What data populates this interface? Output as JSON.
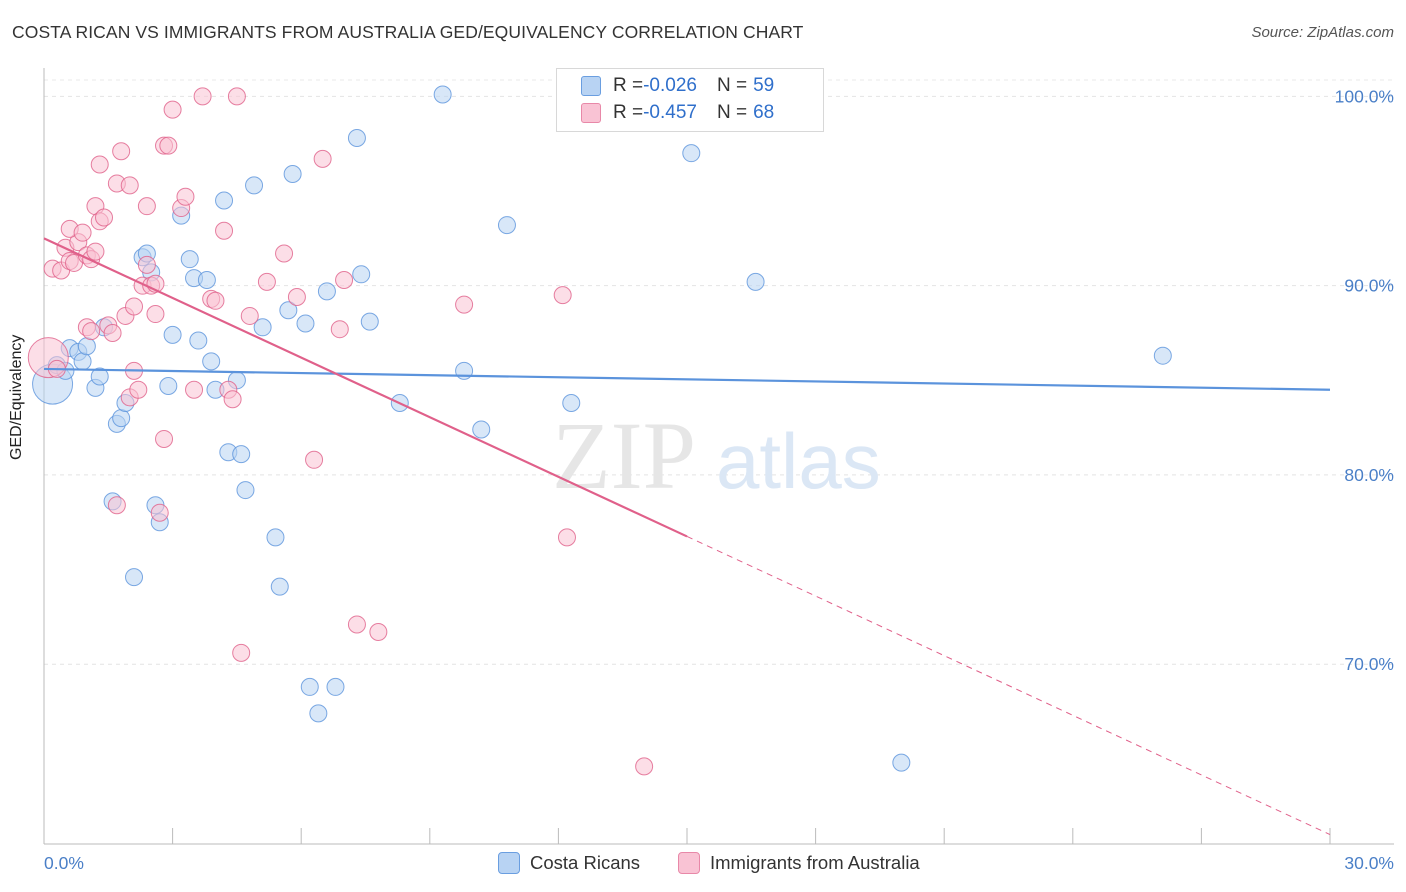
{
  "header": {
    "title": "COSTA RICAN VS IMMIGRANTS FROM AUSTRALIA GED/EQUIVALENCY CORRELATION CHART",
    "source": "Source: ZipAtlas.com"
  },
  "watermark": {
    "zip": "ZIP",
    "atlas": "atlas"
  },
  "legend": {
    "rows": [
      {
        "r_label": "R = ",
        "r_value": "-0.026",
        "n_label": "N = ",
        "n_value": "59",
        "fill": "#b8d3f3",
        "stroke": "#6a9ee0"
      },
      {
        "r_label": "R = ",
        "r_value": "-0.457",
        "n_label": "N = ",
        "n_value": "68",
        "fill": "#f9c3d4",
        "stroke": "#e888a8"
      }
    ]
  },
  "bottom_legend": {
    "items": [
      {
        "label": "Costa Ricans",
        "fill": "#b8d3f3",
        "stroke": "#6a9ee0"
      },
      {
        "label": "Immigrants from Australia",
        "fill": "#f9c3d4",
        "stroke": "#e888a8"
      }
    ]
  },
  "chart_data": {
    "type": "scatter",
    "title": "COSTA RICAN VS IMMIGRANTS FROM AUSTRALIA GED/EQUIVALENCY CORRELATION CHART",
    "xlabel": "",
    "ylabel": "GED/Equivalency",
    "xlim": [
      0,
      30
    ],
    "ylim": [
      60.5,
      101.5
    ],
    "x_tick_labels": [
      "0.0%",
      "30.0%"
    ],
    "y_ticks": [
      70,
      80,
      90,
      100
    ],
    "y_tick_labels": [
      "70.0%",
      "80.0%",
      "90.0%",
      "100.0%"
    ],
    "grid": true,
    "legend_position": "top-center",
    "series": [
      {
        "name": "Costa Ricans",
        "color": "#5b93dc",
        "fill": "#b8d3f3",
        "trend": {
          "x": [
            0,
            30
          ],
          "y": [
            85.6,
            84.5
          ],
          "solid_to": 30
        },
        "points": [
          {
            "x": 0.2,
            "y": 84.8,
            "big": true
          },
          {
            "x": 0.3,
            "y": 85.8
          },
          {
            "x": 0.5,
            "y": 85.5
          },
          {
            "x": 0.6,
            "y": 86.7
          },
          {
            "x": 0.8,
            "y": 86.5
          },
          {
            "x": 0.9,
            "y": 86.0
          },
          {
            "x": 1.0,
            "y": 86.8
          },
          {
            "x": 1.2,
            "y": 84.6
          },
          {
            "x": 1.3,
            "y": 85.2
          },
          {
            "x": 1.4,
            "y": 87.8
          },
          {
            "x": 1.7,
            "y": 82.7
          },
          {
            "x": 1.8,
            "y": 83.0
          },
          {
            "x": 1.9,
            "y": 83.8
          },
          {
            "x": 1.6,
            "y": 78.6
          },
          {
            "x": 2.1,
            "y": 74.6
          },
          {
            "x": 2.3,
            "y": 91.5
          },
          {
            "x": 2.4,
            "y": 91.7
          },
          {
            "x": 2.5,
            "y": 90.7
          },
          {
            "x": 2.6,
            "y": 78.4
          },
          {
            "x": 2.7,
            "y": 77.5
          },
          {
            "x": 2.9,
            "y": 84.7
          },
          {
            "x": 3.0,
            "y": 87.4
          },
          {
            "x": 3.2,
            "y": 93.7
          },
          {
            "x": 3.4,
            "y": 91.4
          },
          {
            "x": 3.5,
            "y": 90.4
          },
          {
            "x": 3.6,
            "y": 87.1
          },
          {
            "x": 3.8,
            "y": 90.3
          },
          {
            "x": 3.9,
            "y": 86.0
          },
          {
            "x": 4.0,
            "y": 84.5
          },
          {
            "x": 4.2,
            "y": 94.5
          },
          {
            "x": 4.3,
            "y": 81.2
          },
          {
            "x": 4.5,
            "y": 85.0
          },
          {
            "x": 4.6,
            "y": 81.1
          },
          {
            "x": 4.7,
            "y": 79.2
          },
          {
            "x": 4.9,
            "y": 95.3
          },
          {
            "x": 5.1,
            "y": 87.8
          },
          {
            "x": 5.4,
            "y": 76.7
          },
          {
            "x": 5.5,
            "y": 74.1
          },
          {
            "x": 5.7,
            "y": 88.7
          },
          {
            "x": 5.8,
            "y": 95.9
          },
          {
            "x": 6.1,
            "y": 88.0
          },
          {
            "x": 6.2,
            "y": 68.8
          },
          {
            "x": 6.4,
            "y": 67.4
          },
          {
            "x": 6.6,
            "y": 89.7
          },
          {
            "x": 6.8,
            "y": 68.8
          },
          {
            "x": 7.3,
            "y": 97.8
          },
          {
            "x": 7.4,
            "y": 90.6
          },
          {
            "x": 7.6,
            "y": 88.1
          },
          {
            "x": 8.3,
            "y": 83.8
          },
          {
            "x": 9.3,
            "y": 100.1
          },
          {
            "x": 9.8,
            "y": 85.5
          },
          {
            "x": 10.2,
            "y": 82.4
          },
          {
            "x": 10.8,
            "y": 93.2
          },
          {
            "x": 12.3,
            "y": 83.8
          },
          {
            "x": 15.1,
            "y": 97.0
          },
          {
            "x": 16.6,
            "y": 90.2
          },
          {
            "x": 20.0,
            "y": 64.8
          },
          {
            "x": 26.1,
            "y": 86.3
          }
        ]
      },
      {
        "name": "Immigrants from Australia",
        "color": "#e0608a",
        "fill": "#f9c3d4",
        "trend": {
          "x": [
            0,
            30
          ],
          "y": [
            92.5,
            61.0
          ],
          "solid_to": 15.0
        },
        "points": [
          {
            "x": 0.1,
            "y": 86.2,
            "big": true
          },
          {
            "x": 0.2,
            "y": 90.9
          },
          {
            "x": 0.3,
            "y": 85.6
          },
          {
            "x": 0.4,
            "y": 90.8
          },
          {
            "x": 0.5,
            "y": 92.0
          },
          {
            "x": 0.6,
            "y": 91.3
          },
          {
            "x": 0.7,
            "y": 91.2
          },
          {
            "x": 0.8,
            "y": 92.3
          },
          {
            "x": 0.6,
            "y": 93.0
          },
          {
            "x": 0.9,
            "y": 92.8
          },
          {
            "x": 1.0,
            "y": 91.6
          },
          {
            "x": 1.1,
            "y": 91.4
          },
          {
            "x": 1.2,
            "y": 91.8
          },
          {
            "x": 1.0,
            "y": 87.8
          },
          {
            "x": 1.1,
            "y": 87.6
          },
          {
            "x": 1.2,
            "y": 94.2
          },
          {
            "x": 1.3,
            "y": 93.4
          },
          {
            "x": 1.4,
            "y": 93.6
          },
          {
            "x": 1.3,
            "y": 96.4
          },
          {
            "x": 1.5,
            "y": 87.9
          },
          {
            "x": 1.6,
            "y": 87.5
          },
          {
            "x": 1.7,
            "y": 78.4
          },
          {
            "x": 1.7,
            "y": 95.4
          },
          {
            "x": 1.8,
            "y": 97.1
          },
          {
            "x": 1.9,
            "y": 88.4
          },
          {
            "x": 2.0,
            "y": 95.3
          },
          {
            "x": 2.0,
            "y": 84.1
          },
          {
            "x": 2.1,
            "y": 88.9
          },
          {
            "x": 2.1,
            "y": 85.5
          },
          {
            "x": 2.2,
            "y": 84.5
          },
          {
            "x": 2.3,
            "y": 90.0
          },
          {
            "x": 2.4,
            "y": 91.1
          },
          {
            "x": 2.4,
            "y": 94.2
          },
          {
            "x": 2.5,
            "y": 90.0
          },
          {
            "x": 2.6,
            "y": 90.1
          },
          {
            "x": 2.6,
            "y": 88.5
          },
          {
            "x": 2.7,
            "y": 78.0
          },
          {
            "x": 2.8,
            "y": 81.9
          },
          {
            "x": 2.8,
            "y": 97.4
          },
          {
            "x": 2.9,
            "y": 97.4
          },
          {
            "x": 3.0,
            "y": 99.3
          },
          {
            "x": 3.2,
            "y": 94.1
          },
          {
            "x": 3.3,
            "y": 94.7
          },
          {
            "x": 3.5,
            "y": 84.5
          },
          {
            "x": 3.7,
            "y": 100.0
          },
          {
            "x": 3.9,
            "y": 89.3
          },
          {
            "x": 4.0,
            "y": 89.2
          },
          {
            "x": 4.2,
            "y": 92.9
          },
          {
            "x": 4.3,
            "y": 84.5
          },
          {
            "x": 4.4,
            "y": 84.0
          },
          {
            "x": 4.5,
            "y": 100.0
          },
          {
            "x": 4.6,
            "y": 70.6
          },
          {
            "x": 4.8,
            "y": 88.4
          },
          {
            "x": 5.2,
            "y": 90.2
          },
          {
            "x": 5.6,
            "y": 91.7
          },
          {
            "x": 5.9,
            "y": 89.4
          },
          {
            "x": 6.3,
            "y": 80.8
          },
          {
            "x": 6.5,
            "y": 96.7
          },
          {
            "x": 6.9,
            "y": 87.7
          },
          {
            "x": 7.0,
            "y": 90.3
          },
          {
            "x": 7.3,
            "y": 72.1
          },
          {
            "x": 7.8,
            "y": 71.7
          },
          {
            "x": 9.8,
            "y": 89.0
          },
          {
            "x": 12.1,
            "y": 89.5
          },
          {
            "x": 12.2,
            "y": 76.7
          },
          {
            "x": 14.0,
            "y": 64.6
          }
        ]
      }
    ]
  }
}
